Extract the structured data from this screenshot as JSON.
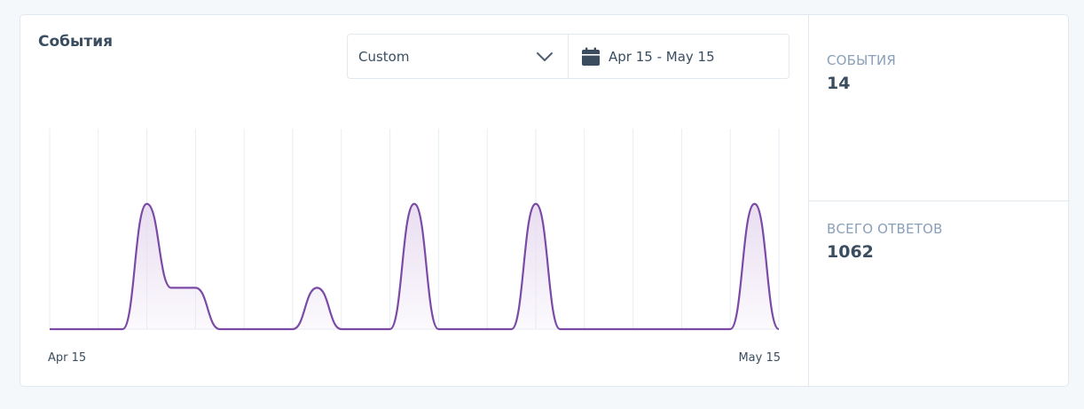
{
  "title": "События",
  "controls": {
    "range_select": "Custom",
    "date_range": "Apr 15 - May 15"
  },
  "stats": [
    {
      "label": "События",
      "value": "14"
    },
    {
      "label": "Всего ответов",
      "value": "1062"
    }
  ],
  "colors": {
    "line": "#7b4aa6",
    "fill_top": "#e8dcf0",
    "grid": "#e6eef5",
    "label": "#8aa0b8",
    "text": "#3a4d60"
  },
  "chart_data": {
    "type": "area",
    "x": [
      "Apr 15",
      "Apr 16",
      "Apr 17",
      "Apr 18",
      "Apr 19",
      "Apr 20",
      "Apr 21",
      "Apr 22",
      "Apr 23",
      "Apr 24",
      "Apr 25",
      "Apr 26",
      "Apr 27",
      "Apr 28",
      "Apr 29",
      "Apr 30",
      "May 1",
      "May 2",
      "May 3",
      "May 4",
      "May 5",
      "May 6",
      "May 7",
      "May 8",
      "May 9",
      "May 10",
      "May 11",
      "May 12",
      "May 13",
      "May 14",
      "May 15"
    ],
    "values": [
      0,
      0,
      0,
      0,
      2,
      0.66,
      0.66,
      0,
      0,
      0,
      0,
      0.66,
      0,
      0,
      0,
      2,
      0,
      0,
      0,
      0,
      2,
      0,
      0,
      0,
      0,
      0,
      0,
      0,
      0,
      2,
      0
    ],
    "x_tick_labels": [
      "Apr 15",
      "May 15"
    ],
    "ylim": [
      0,
      3.2
    ],
    "grid": true,
    "legend": "none"
  }
}
